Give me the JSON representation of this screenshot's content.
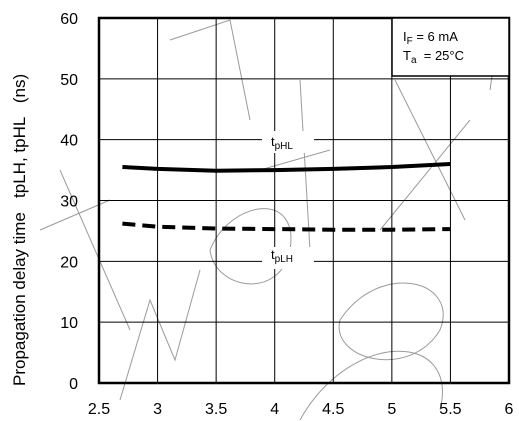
{
  "chart_data": {
    "type": "line",
    "ylabel": "Propagation delay time   tpLH, tpHL   (ns)",
    "xlim": [
      2.5,
      6
    ],
    "ylim": [
      0,
      60
    ],
    "x_ticks": [
      "2.5",
      "3",
      "3.5",
      "4",
      "4.5",
      "5",
      "5.5",
      "6"
    ],
    "y_ticks": [
      "0",
      "10",
      "20",
      "30",
      "40",
      "50",
      "60"
    ],
    "grid": true,
    "conditions": {
      "if_main": "I",
      "if_sub": "F",
      "if_value": " = 6 mA",
      "ta_main": "T",
      "ta_sub": "a",
      "ta_value": "  = 25°C"
    },
    "series": [
      {
        "name": "tpHL",
        "label_main": "t",
        "label_sub": "pHL",
        "style": "solid",
        "x": [
          2.7,
          3.0,
          3.5,
          4.0,
          4.5,
          5.0,
          5.5
        ],
        "y": [
          35.5,
          35.2,
          34.9,
          35.0,
          35.2,
          35.5,
          36.0
        ]
      },
      {
        "name": "tpLH",
        "label_main": "t",
        "label_sub": "pLH",
        "style": "dashed",
        "x": [
          2.7,
          3.0,
          3.5,
          4.0,
          4.5,
          5.0,
          5.5
        ],
        "y": [
          26.2,
          25.7,
          25.4,
          25.3,
          25.2,
          25.2,
          25.3
        ]
      }
    ]
  }
}
